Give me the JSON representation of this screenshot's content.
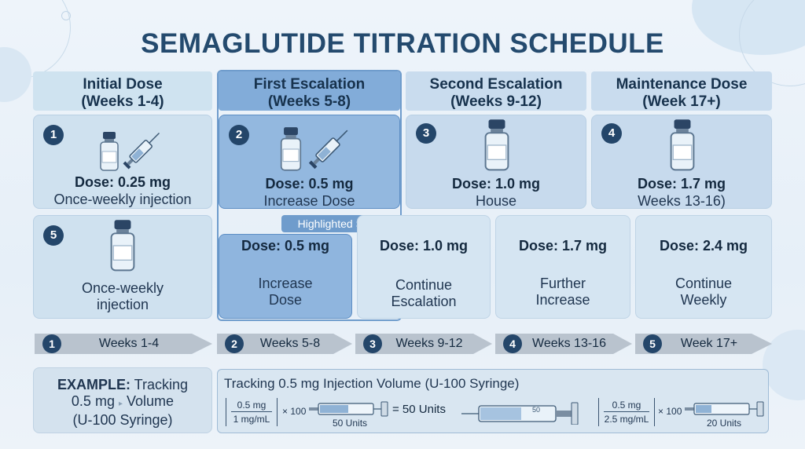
{
  "title": "SEMAGLUTIDE TITRATION SCHEDULE",
  "phases": [
    {
      "line1": "Initial Dose",
      "line2": "(Weeks 1-4)"
    },
    {
      "line1": "First Escalation",
      "line2": "(Weeks 5-8)"
    },
    {
      "line1": "Second Escalation",
      "line2": "(Weeks 9-12)"
    },
    {
      "line1": "Maintenance Dose",
      "line2": "(Week 17+)"
    }
  ],
  "top_cards": [
    {
      "number": "1",
      "dose": "Dose: 0.25 mg",
      "desc": "Once-weekly injection"
    },
    {
      "number": "2",
      "dose": "Dose: 0.5 mg",
      "desc": "Increase Dose"
    },
    {
      "number": "3",
      "dose": "Dose: 1.0 mg",
      "desc": "House"
    },
    {
      "number": "4",
      "dose": "Dose: 1.7 mg",
      "desc": "Weeks 13-16)"
    }
  ],
  "highlight_label": "Highlighted Step",
  "card5": {
    "number": "5",
    "line1": "Once-weekly",
    "line2": "injection"
  },
  "lower_cards": [
    {
      "dose": "Dose: 0.5 mg",
      "line1": "Increase",
      "line2": "Dose"
    },
    {
      "dose": "Dose: 1.0 mg",
      "line1": "Continue",
      "line2": "Escalation"
    },
    {
      "dose": "Dose: 1.7 mg",
      "line1": "Further",
      "line2": "Increase"
    },
    {
      "dose": "Dose: 2.4 mg",
      "line1": "Continue",
      "line2": "Weekly"
    }
  ],
  "timeline": [
    {
      "number": "1",
      "label": "Weeks 1-4"
    },
    {
      "number": "2",
      "label": "Weeks 5-8"
    },
    {
      "number": "3",
      "label": "Weeks 9-12"
    },
    {
      "number": "4",
      "label": "Weeks 13-16"
    },
    {
      "number": "5",
      "label": "Week 17+"
    }
  ],
  "example": {
    "bold": "EXAMPLE:",
    "rest1": " Tracking",
    "line2a": "0.5 mg",
    "line2b": "Volume",
    "line3": "(U-100 Syringe)"
  },
  "tracking": {
    "title": "Tracking 0.5 mg Injection Volume (U-100 Syringe)",
    "frac1_top": "0.5 mg",
    "frac1_bot": "1 mg/mL",
    "times1": "× 100",
    "units1": "50 Units",
    "equals": "= 50 Units",
    "syringe_mark": "50",
    "frac2_top": "0.5 mg",
    "frac2_bot": "2.5 mg/mL",
    "times2": "× 100",
    "units2": "20 Units"
  },
  "colors": {
    "navy": "#24466a",
    "highlight": "#7ea8d6",
    "card": "#cfe1ef",
    "arrow": "#b9c2cc"
  },
  "icons": [
    "vial-icon",
    "syringe-icon"
  ]
}
